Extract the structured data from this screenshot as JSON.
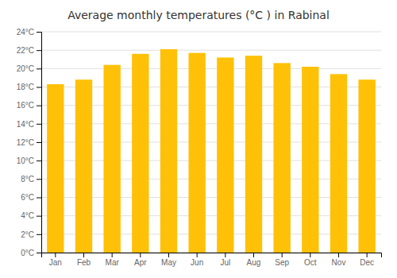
{
  "chart_data": {
    "type": "bar",
    "title": "Average monthly temperatures (°C ) in Rabinal",
    "categories": [
      "Jan",
      "Feb",
      "Mar",
      "Apr",
      "May",
      "Jun",
      "Jul",
      "Aug",
      "Sep",
      "Oct",
      "Nov",
      "Dec"
    ],
    "values": [
      18.3,
      18.8,
      20.4,
      21.6,
      22.1,
      21.7,
      21.2,
      21.4,
      20.6,
      20.2,
      19.4,
      18.8
    ],
    "color": "#FFC107",
    "ylim": [
      0,
      24
    ],
    "yticks": [
      {
        "value": 0,
        "label": "0°C"
      },
      {
        "value": 2,
        "label": "2°C"
      },
      {
        "value": 4,
        "label": "4°C"
      },
      {
        "value": 6,
        "label": "6°C"
      },
      {
        "value": 8,
        "label": "8°C"
      },
      {
        "value": 10,
        "label": "10°C"
      },
      {
        "value": 12,
        "label": "12°C"
      },
      {
        "value": 14,
        "label": "14°C"
      },
      {
        "value": 16,
        "label": "16°C"
      },
      {
        "value": 18,
        "label": "18°C"
      },
      {
        "value": 20,
        "label": "20°C"
      },
      {
        "value": 22,
        "label": "22°C"
      },
      {
        "value": 24,
        "label": "24°C"
      }
    ],
    "grid": true
  }
}
